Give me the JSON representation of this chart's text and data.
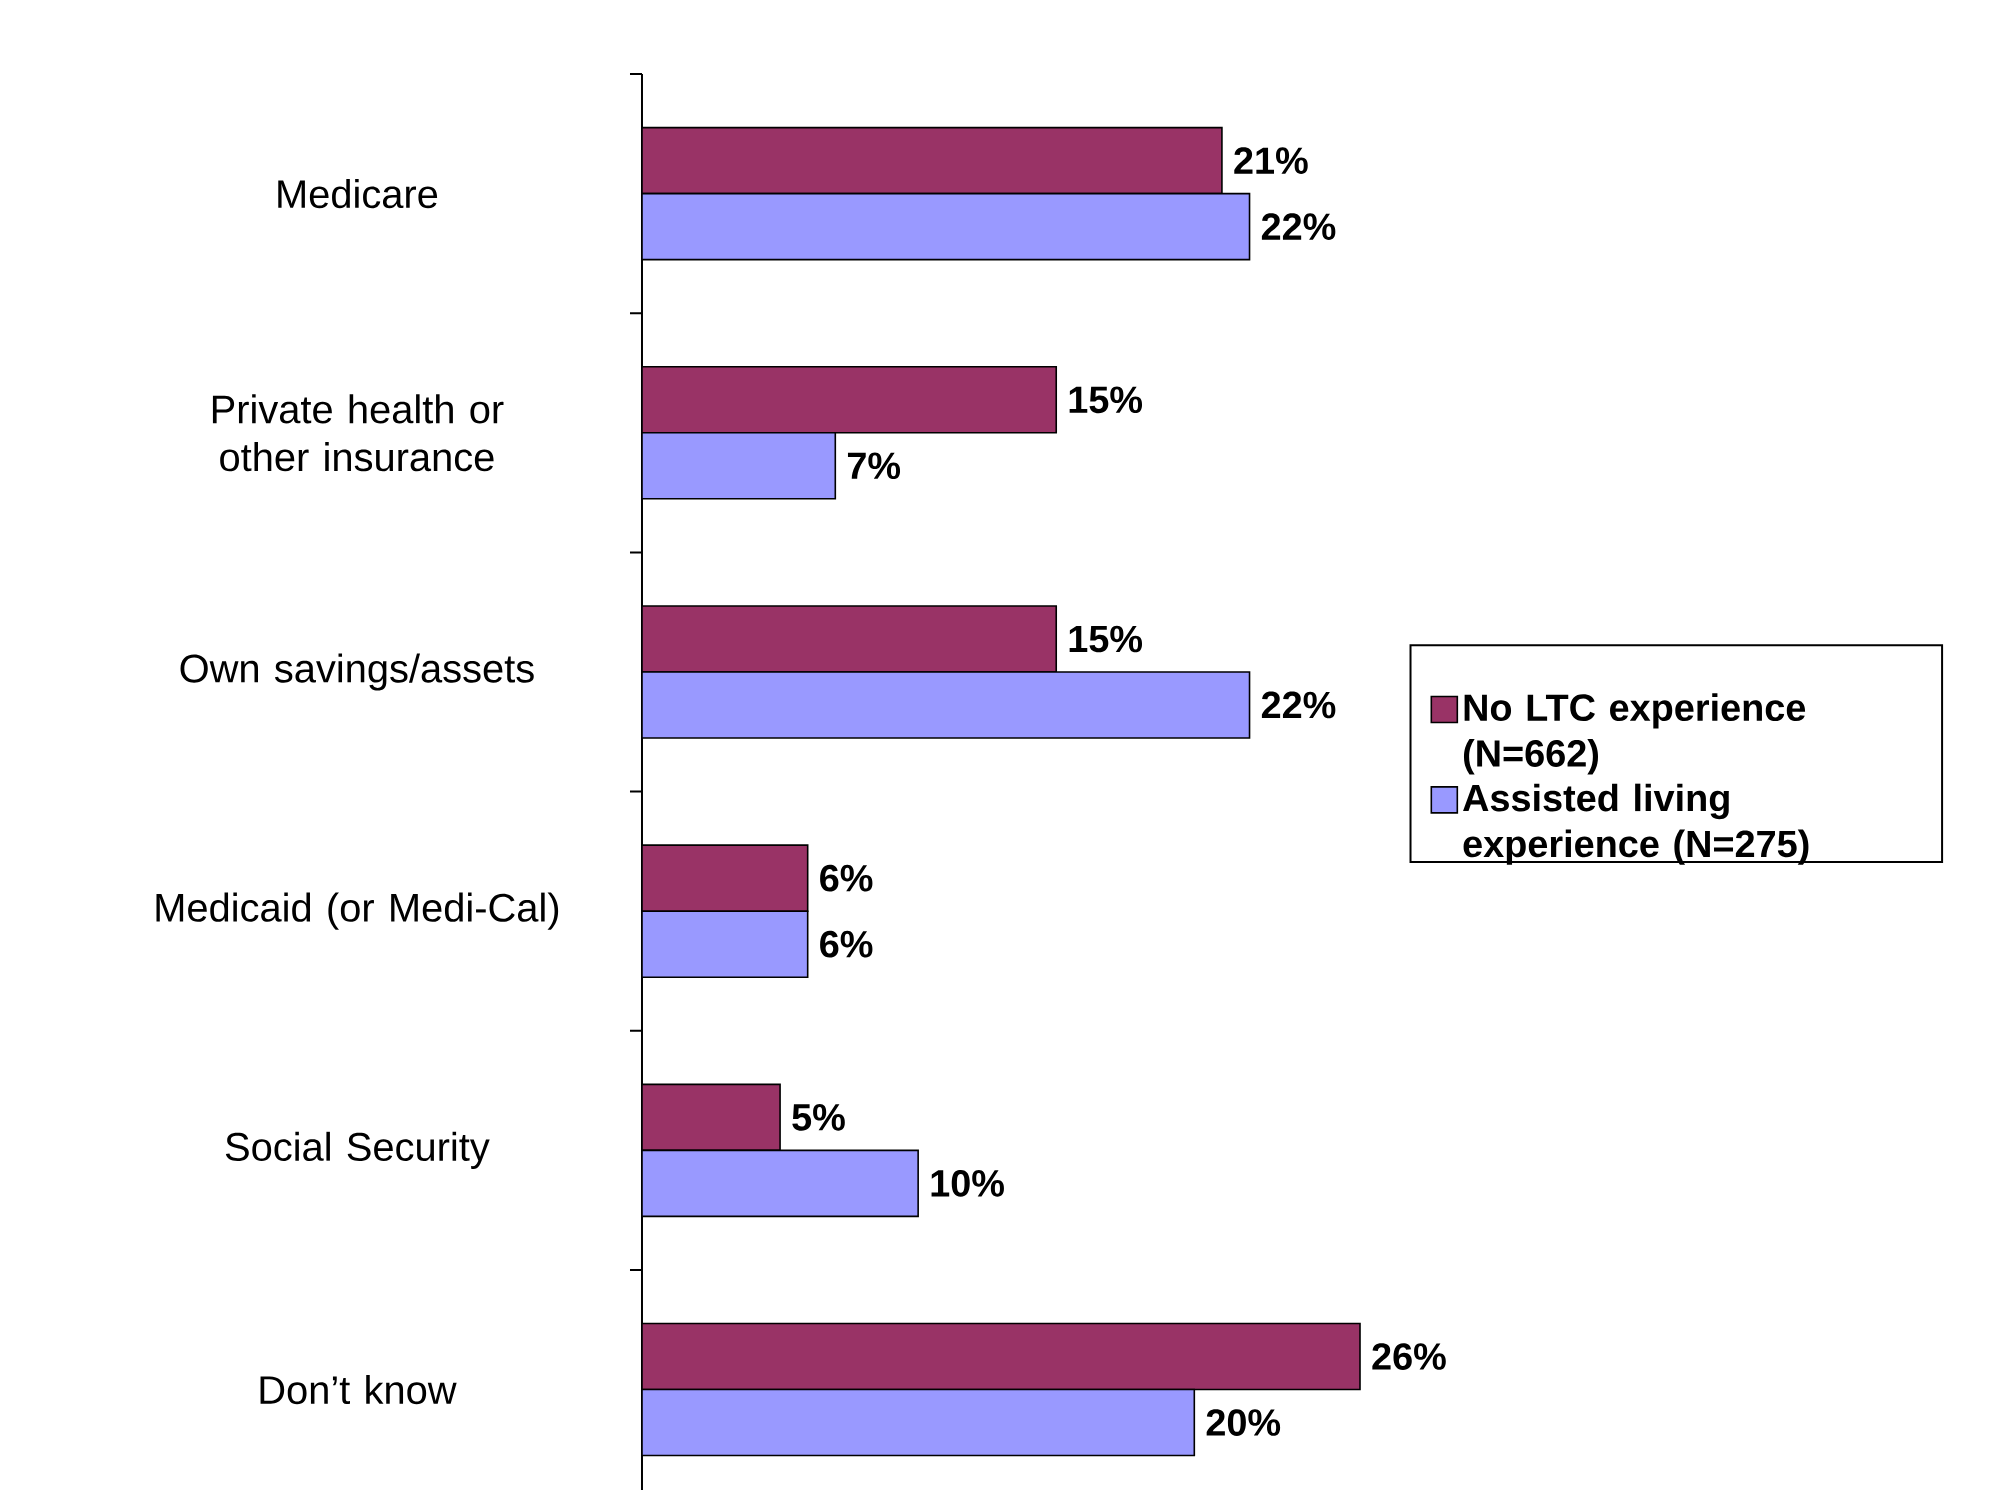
{
  "chart_data": {
    "type": "bar",
    "orientation": "horizontal",
    "categories": [
      "Medicare",
      "Private health or other insurance",
      "Own savings/assets",
      "Medicaid (or Medi-Cal)",
      "Social Security",
      "Don’t know"
    ],
    "series": [
      {
        "name": "No LTC experience (N=662)",
        "color": "#993366",
        "values": [
          21,
          15,
          15,
          6,
          5,
          26
        ],
        "value_labels": [
          "21%",
          "15%",
          "15%",
          "6%",
          "5%",
          "26%"
        ]
      },
      {
        "name": "Assisted living experience (N=275)",
        "color": "#9999ff",
        "values": [
          22,
          7,
          22,
          6,
          10,
          20
        ],
        "value_labels": [
          "22%",
          "7%",
          "22%",
          "6%",
          "10%",
          "20%"
        ]
      }
    ],
    "legend": "right"
  }
}
